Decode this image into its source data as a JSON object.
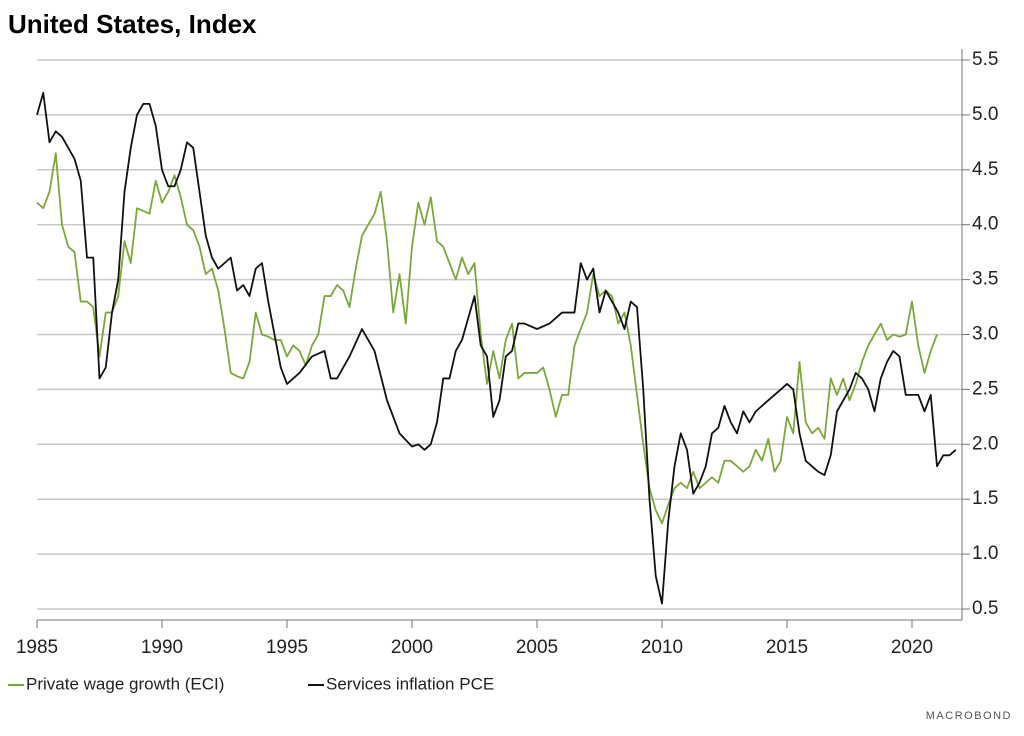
{
  "chart_data": {
    "type": "line",
    "title": "United States, Index",
    "source": "MACROBOND",
    "xlim": [
      1985,
      2022
    ],
    "xticks": [
      1985,
      1990,
      1995,
      2000,
      2005,
      2010,
      2015,
      2020
    ],
    "ylim": [
      0.4,
      5.6
    ],
    "yticks": [
      0.5,
      {
        "value": 1,
        "label": "1.0"
      },
      1.5,
      {
        "value": 2,
        "label": "2.0"
      },
      2.5,
      {
        "value": 3,
        "label": "3.0"
      },
      3.5,
      {
        "value": 4,
        "label": "4.0"
      },
      4.5,
      {
        "value": 5,
        "label": "5.0"
      },
      5.5
    ],
    "grid": true,
    "y_axis_side": "right",
    "legend": "bottom-left",
    "series": [
      {
        "name": "Private wage growth (ECI)",
        "color": "#7aa83a",
        "x": [
          1985.0,
          1985.25,
          1985.5,
          1985.75,
          1986.0,
          1986.25,
          1986.5,
          1986.75,
          1987.0,
          1987.25,
          1987.5,
          1987.75,
          1988.0,
          1988.25,
          1988.5,
          1988.75,
          1989.0,
          1989.5,
          1989.75,
          1990.0,
          1990.25,
          1990.5,
          1990.75,
          1991.0,
          1991.25,
          1991.5,
          1991.75,
          1992.0,
          1992.25,
          1992.5,
          1992.75,
          1993.0,
          1993.25,
          1993.5,
          1993.75,
          1994.0,
          1994.25,
          1994.5,
          1994.75,
          1995.0,
          1995.25,
          1995.5,
          1995.75,
          1996.0,
          1996.25,
          1996.5,
          1996.75,
          1997.0,
          1997.25,
          1997.5,
          1997.75,
          1998.0,
          1998.25,
          1998.5,
          1998.75,
          1999.0,
          1999.25,
          1999.5,
          1999.75,
          2000.0,
          2000.25,
          2000.5,
          2000.75,
          2001.0,
          2001.25,
          2001.5,
          2001.75,
          2002.0,
          2002.25,
          2002.5,
          2002.75,
          2003.0,
          2003.25,
          2003.5,
          2003.75,
          2004.0,
          2004.25,
          2004.5,
          2005.0,
          2005.25,
          2005.5,
          2005.75,
          2006.0,
          2006.25,
          2006.5,
          2007.0,
          2007.25,
          2007.5,
          2007.75,
          2008.0,
          2008.25,
          2008.5,
          2008.75,
          2009.0,
          2009.25,
          2009.5,
          2009.75,
          2010.0,
          2010.25,
          2010.5,
          2010.75,
          2011.0,
          2011.25,
          2011.5,
          2011.75,
          2012.0,
          2012.25,
          2012.5,
          2012.75,
          2013.0,
          2013.25,
          2013.5,
          2013.75,
          2014.0,
          2014.25,
          2014.5,
          2014.75,
          2015.0,
          2015.25,
          2015.5,
          2015.75,
          2016.0,
          2016.25,
          2016.5,
          2016.75,
          2017.0,
          2017.25,
          2017.5,
          2017.75,
          2018.0,
          2018.25,
          2018.5,
          2018.75,
          2019.0,
          2019.25,
          2019.5,
          2019.75,
          2020.0,
          2020.25,
          2020.5,
          2020.75,
          2021.0
        ],
        "values": [
          4.2,
          4.15,
          4.3,
          4.65,
          4.0,
          3.8,
          3.75,
          3.3,
          3.3,
          3.25,
          2.8,
          3.2,
          3.2,
          3.35,
          3.85,
          3.65,
          4.15,
          4.1,
          4.4,
          4.2,
          4.3,
          4.45,
          4.25,
          4.0,
          3.95,
          3.8,
          3.55,
          3.6,
          3.4,
          3.05,
          2.65,
          2.62,
          2.6,
          2.75,
          3.2,
          3.0,
          2.98,
          2.95,
          2.95,
          2.8,
          2.9,
          2.85,
          2.72,
          2.9,
          3.0,
          3.35,
          3.35,
          3.45,
          3.4,
          3.25,
          3.6,
          3.9,
          4.0,
          4.1,
          4.3,
          3.85,
          3.2,
          3.55,
          3.1,
          3.8,
          4.2,
          4.0,
          4.25,
          3.85,
          3.8,
          3.65,
          3.5,
          3.7,
          3.55,
          3.65,
          3.0,
          2.55,
          2.85,
          2.6,
          2.95,
          3.1,
          2.6,
          2.65,
          2.65,
          2.7,
          2.5,
          2.25,
          2.45,
          2.45,
          2.9,
          3.2,
          3.55,
          3.35,
          3.4,
          3.35,
          3.1,
          3.2,
          2.9,
          2.45,
          2.0,
          1.6,
          1.4,
          1.28,
          1.45,
          1.6,
          1.65,
          1.6,
          1.75,
          1.6,
          1.65,
          1.7,
          1.65,
          1.85,
          1.85,
          1.8,
          1.75,
          1.8,
          1.95,
          1.85,
          2.05,
          1.75,
          1.85,
          2.25,
          2.1,
          2.75,
          2.2,
          2.1,
          2.15,
          2.05,
          2.6,
          2.45,
          2.6,
          2.4,
          2.55,
          2.75,
          2.9,
          3.0,
          3.1,
          2.95,
          3.0,
          2.98,
          3.0,
          3.3,
          2.9,
          2.65,
          2.85,
          3.0
        ]
      },
      {
        "name": "Services inflation PCE",
        "color": "#111111",
        "x": [
          1985.0,
          1985.25,
          1985.5,
          1985.75,
          1986.0,
          1986.25,
          1986.5,
          1986.75,
          1987.0,
          1987.25,
          1987.5,
          1987.75,
          1988.0,
          1988.25,
          1988.5,
          1988.75,
          1989.0,
          1989.25,
          1989.5,
          1989.75,
          1990.0,
          1990.25,
          1990.5,
          1990.75,
          1991.0,
          1991.25,
          1991.5,
          1991.75,
          1992.0,
          1992.25,
          1992.5,
          1992.75,
          1993.0,
          1993.25,
          1993.5,
          1993.75,
          1994.0,
          1994.25,
          1994.5,
          1994.75,
          1995.0,
          1995.5,
          1996.0,
          1996.5,
          1996.75,
          1997.0,
          1997.5,
          1998.0,
          1998.5,
          1999.0,
          1999.5,
          2000.0,
          2000.25,
          2000.5,
          2000.75,
          2001.0,
          2001.25,
          2001.5,
          2001.75,
          2002.0,
          2002.25,
          2002.5,
          2002.75,
          2003.0,
          2003.25,
          2003.5,
          2003.75,
          2004.0,
          2004.25,
          2004.5,
          2005.0,
          2005.5,
          2006.0,
          2006.5,
          2006.75,
          2007.0,
          2007.25,
          2007.5,
          2007.75,
          2008.0,
          2008.25,
          2008.5,
          2008.75,
          2009.0,
          2009.25,
          2009.5,
          2009.75,
          2010.0,
          2010.25,
          2010.5,
          2010.75,
          2011.0,
          2011.25,
          2011.5,
          2011.75,
          2012.0,
          2012.25,
          2012.5,
          2012.75,
          2013.0,
          2013.25,
          2013.5,
          2013.75,
          2014.0,
          2014.5,
          2015.0,
          2015.25,
          2015.5,
          2015.75,
          2016.0,
          2016.25,
          2016.5,
          2016.75,
          2017.0,
          2017.5,
          2017.75,
          2018.0,
          2018.25,
          2018.5,
          2018.75,
          2019.0,
          2019.25,
          2019.5,
          2019.75,
          2020.0,
          2020.25,
          2020.5,
          2020.75,
          2021.0,
          2021.25,
          2021.5,
          2021.75
        ],
        "values": [
          5.0,
          5.2,
          4.75,
          4.85,
          4.8,
          4.7,
          4.6,
          4.4,
          3.7,
          3.7,
          2.6,
          2.7,
          3.2,
          3.5,
          4.3,
          4.7,
          5.0,
          5.1,
          5.1,
          4.9,
          4.5,
          4.35,
          4.35,
          4.5,
          4.75,
          4.7,
          4.3,
          3.9,
          3.7,
          3.6,
          3.65,
          3.7,
          3.4,
          3.45,
          3.35,
          3.6,
          3.65,
          3.3,
          3.0,
          2.7,
          2.55,
          2.65,
          2.8,
          2.85,
          2.6,
          2.6,
          2.8,
          3.05,
          2.85,
          2.4,
          2.1,
          1.98,
          2.0,
          1.95,
          2.0,
          2.2,
          2.6,
          2.6,
          2.85,
          2.95,
          3.15,
          3.35,
          2.9,
          2.8,
          2.25,
          2.4,
          2.8,
          2.85,
          3.1,
          3.1,
          3.05,
          3.1,
          3.2,
          3.2,
          3.65,
          3.5,
          3.6,
          3.2,
          3.4,
          3.3,
          3.2,
          3.05,
          3.3,
          3.25,
          2.5,
          1.5,
          0.8,
          0.55,
          1.3,
          1.8,
          2.1,
          1.95,
          1.55,
          1.65,
          1.8,
          2.1,
          2.15,
          2.35,
          2.2,
          2.1,
          2.3,
          2.2,
          2.3,
          2.35,
          2.45,
          2.55,
          2.5,
          2.1,
          1.85,
          1.8,
          1.75,
          1.72,
          1.9,
          2.3,
          2.5,
          2.65,
          2.6,
          2.5,
          2.3,
          2.6,
          2.75,
          2.85,
          2.8,
          2.45,
          2.45,
          2.45,
          2.3,
          2.45,
          1.8,
          1.9,
          1.9,
          1.95
        ]
      }
    ]
  }
}
